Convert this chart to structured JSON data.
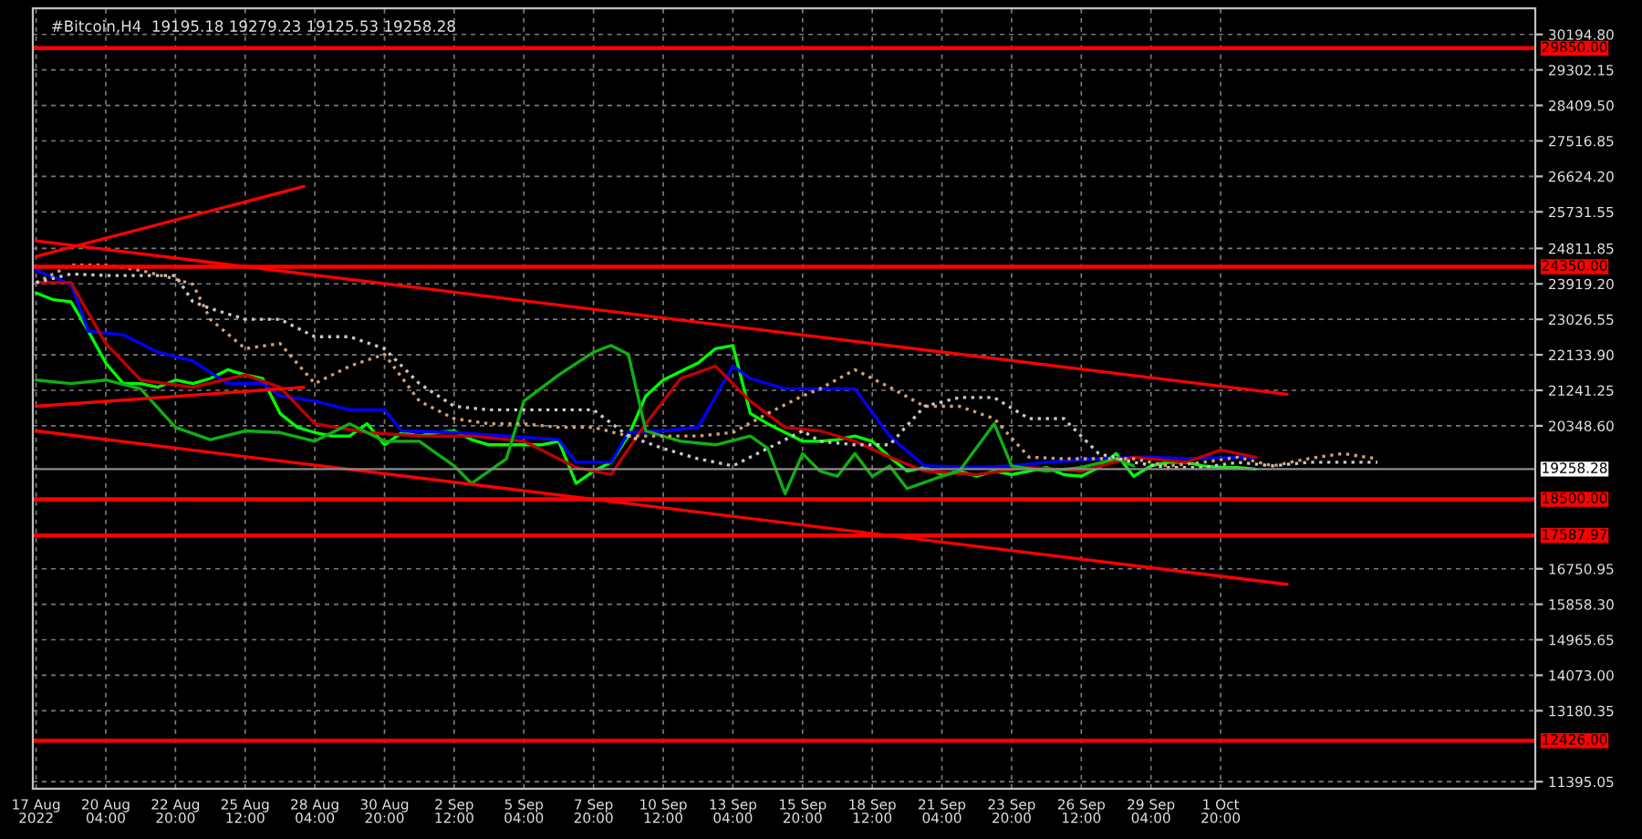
{
  "chart_data": {
    "type": "line",
    "title": "#Bitcoin,H4  19195.18 19279.23 19125.53 19258.28",
    "x": [
      "2022-08-17T12:00",
      "2022-08-18T04:00",
      "2022-08-18T20:00",
      "2022-08-19T12:00",
      "2022-08-20T04:00",
      "2022-08-20T20:00",
      "2022-08-21T12:00",
      "2022-08-22T04:00",
      "2022-08-22T20:00",
      "2022-08-23T12:00",
      "2022-08-24T04:00",
      "2022-08-24T20:00",
      "2022-08-25T12:00",
      "2022-08-26T04:00",
      "2022-08-26T20:00",
      "2022-08-27T12:00",
      "2022-08-28T04:00",
      "2022-08-28T20:00",
      "2022-08-29T12:00",
      "2022-08-30T04:00",
      "2022-08-30T20:00",
      "2022-08-31T12:00",
      "2022-09-01T04:00",
      "2022-09-01T20:00",
      "2022-09-02T12:00",
      "2022-09-03T04:00",
      "2022-09-03T20:00",
      "2022-09-04T12:00",
      "2022-09-05T04:00",
      "2022-09-05T20:00",
      "2022-09-06T12:00",
      "2022-09-07T04:00",
      "2022-09-07T20:00",
      "2022-09-08T12:00",
      "2022-09-09T04:00",
      "2022-09-09T20:00",
      "2022-09-10T12:00",
      "2022-09-11T04:00",
      "2022-09-11T20:00",
      "2022-09-12T12:00",
      "2022-09-13T04:00",
      "2022-09-13T20:00",
      "2022-09-14T12:00",
      "2022-09-15T04:00",
      "2022-09-15T20:00",
      "2022-09-16T12:00",
      "2022-09-17T04:00",
      "2022-09-17T20:00",
      "2022-09-18T12:00",
      "2022-09-19T04:00",
      "2022-09-19T20:00",
      "2022-09-20T12:00",
      "2022-09-21T04:00",
      "2022-09-21T20:00",
      "2022-09-22T12:00",
      "2022-09-23T04:00",
      "2022-09-23T20:00",
      "2022-09-24T12:00",
      "2022-09-25T04:00",
      "2022-09-25T20:00",
      "2022-09-26T12:00",
      "2022-09-27T04:00",
      "2022-09-27T20:00",
      "2022-09-28T12:00",
      "2022-09-29T04:00",
      "2022-09-29T20:00",
      "2022-09-30T12:00",
      "2022-10-01T04:00",
      "2022-10-01T20:00",
      "2022-10-02T12:00",
      "2022-10-03T04:00"
    ],
    "series": [
      {
        "color": "#00ff00",
        "values": [
          23690,
          23520,
          23470,
          22730,
          21930,
          21410,
          21410,
          21320,
          21500,
          21410,
          21540,
          21760,
          21630,
          21540,
          20660,
          20310,
          20180,
          20090,
          20090,
          20400,
          19870,
          20180,
          20090,
          20180,
          20220,
          20000,
          19870,
          19870,
          19870,
          19870,
          19960,
          18900,
          19210,
          19430,
          20090,
          21100,
          21500,
          21720,
          21930,
          22290,
          22370,
          20660,
          20400,
          20180,
          19960,
          19960,
          20000,
          20090,
          19960,
          19560,
          19210,
          19300,
          19120,
          19210,
          19080,
          19210,
          19120,
          19210,
          19300,
          19120,
          19080,
          19300,
          19650,
          19080,
          19340,
          19430,
          19430,
          19340,
          19300,
          19300,
          19260
        ]
      },
      {
        "color": "#0000ff",
        "x": [
          "2022-08-17T12:00",
          "2022-08-18T20:00",
          "2022-08-19T12:00",
          "2022-08-20T20:00",
          "2022-08-22T04:00",
          "2022-08-23T12:00",
          "2022-08-24T20:00",
          "2022-08-26T04:00",
          "2022-08-26T20:00",
          "2022-08-28T04:00",
          "2022-08-29T12:00",
          "2022-08-30T20:00",
          "2022-08-31T12:00",
          "2022-09-02T12:00",
          "2022-09-04T12:00",
          "2022-09-06T12:00",
          "2022-09-07T04:00",
          "2022-09-08T12:00",
          "2022-09-09T04:00",
          "2022-09-10T12:00",
          "2022-09-11T20:00",
          "2022-09-13T04:00",
          "2022-09-13T20:00",
          "2022-09-15T04:00",
          "2022-09-16T12:00",
          "2022-09-17T20:00",
          "2022-09-19T04:00",
          "2022-09-20T12:00",
          "2022-09-22T12:00",
          "2022-09-23T20:00",
          "2022-09-25T04:00",
          "2022-09-27T04:00",
          "2022-09-29T04:00",
          "2022-09-30T12:00",
          "2022-10-03T04:00"
        ],
        "values": [
          24260,
          23910,
          22730,
          22640,
          22200,
          21980,
          21410,
          21410,
          21100,
          20970,
          20750,
          20750,
          20220,
          20180,
          20090,
          20000,
          19430,
          19430,
          20180,
          20220,
          20310,
          21850,
          21540,
          21280,
          21280,
          21280,
          20090,
          19340,
          19300,
          19340,
          19430,
          19520,
          19560,
          19520,
          19560
        ]
      },
      {
        "color": "#c00000",
        "x": [
          "2022-08-17T12:00",
          "2022-08-18T20:00",
          "2022-08-20T04:00",
          "2022-08-21T12:00",
          "2022-08-23T12:00",
          "2022-08-25T12:00",
          "2022-08-26T20:00",
          "2022-08-28T04:00",
          "2022-08-30T04:00",
          "2022-09-01T04:00",
          "2022-09-03T04:00",
          "2022-09-05T04:00",
          "2022-09-07T04:00",
          "2022-09-08T12:00",
          "2022-09-09T20:00",
          "2022-09-11T04:00",
          "2022-09-12T12:00",
          "2022-09-13T20:00",
          "2022-09-15T04:00",
          "2022-09-16T12:00",
          "2022-09-17T20:00",
          "2022-09-19T04:00",
          "2022-09-20T12:00",
          "2022-09-22T12:00",
          "2022-09-24T12:00",
          "2022-09-26T12:00",
          "2022-09-28T12:00",
          "2022-09-30T12:00",
          "2022-10-01T20:00",
          "2022-10-03T04:00"
        ],
        "values": [
          23950,
          23950,
          22420,
          21500,
          21320,
          21630,
          21320,
          20400,
          20180,
          20090,
          20090,
          19960,
          19300,
          19120,
          20400,
          21540,
          21850,
          20970,
          20310,
          20220,
          19960,
          19560,
          19210,
          19120,
          19300,
          19210,
          19560,
          19430,
          19740,
          19560
        ]
      },
      {
        "color": "#10b010",
        "x": [
          "2022-08-17T12:00",
          "2022-08-18T20:00",
          "2022-08-20T04:00",
          "2022-08-21T12:00",
          "2022-08-22T20:00",
          "2022-08-24T04:00",
          "2022-08-25T12:00",
          "2022-08-26T20:00",
          "2022-08-28T04:00",
          "2022-08-29T12:00",
          "2022-08-30T20:00",
          "2022-09-01T04:00",
          "2022-09-02T12:00",
          "2022-09-03T04:00",
          "2022-09-04T12:00",
          "2022-09-05T04:00",
          "2022-09-06T12:00",
          "2022-09-07T20:00",
          "2022-09-08T12:00",
          "2022-09-09T04:00",
          "2022-09-09T20:00",
          "2022-09-11T04:00",
          "2022-09-12T12:00",
          "2022-09-13T20:00",
          "2022-09-14T12:00",
          "2022-09-15T04:00",
          "2022-09-15T20:00",
          "2022-09-16T12:00",
          "2022-09-17T04:00",
          "2022-09-17T20:00",
          "2022-09-18T12:00",
          "2022-09-19T04:00",
          "2022-09-19T20:00",
          "2022-09-21T04:00",
          "2022-09-21T20:00",
          "2022-09-23T04:00",
          "2022-09-23T20:00",
          "2022-09-25T04:00",
          "2022-09-26T12:00",
          "2022-09-27T20:00",
          "2022-09-28T12:00"
        ],
        "values": [
          21500,
          21410,
          21500,
          21280,
          20310,
          20000,
          20220,
          20180,
          19960,
          20400,
          19960,
          19960,
          19340,
          18900,
          19520,
          20970,
          21630,
          22200,
          22370,
          22150,
          20220,
          19960,
          19870,
          20090,
          19780,
          18640,
          19650,
          19210,
          19080,
          19650,
          19080,
          19340,
          18770,
          19080,
          19210,
          20400,
          19340,
          19210,
          19300,
          19520,
          19340
        ]
      },
      {
        "color": "#d2a070",
        "line_style": "dotted",
        "x": [
          "2022-08-17T12:00",
          "2022-08-18T20:00",
          "2022-08-20T04:00",
          "2022-08-21T12:00",
          "2022-08-22T20:00",
          "2022-08-23T12:00",
          "2022-08-24T04:00",
          "2022-08-25T12:00",
          "2022-08-26T20:00",
          "2022-08-28T04:00",
          "2022-08-29T12:00",
          "2022-08-30T20:00",
          "2022-09-01T04:00",
          "2022-09-02T12:00",
          "2022-09-03T20:00",
          "2022-09-05T04:00",
          "2022-09-06T12:00",
          "2022-09-07T20:00",
          "2022-09-09T04:00",
          "2022-09-10T12:00",
          "2022-09-11T20:00",
          "2022-09-13T04:00",
          "2022-09-14T12:00",
          "2022-09-15T20:00",
          "2022-09-16T12:00",
          "2022-09-17T20:00",
          "2022-09-19T04:00",
          "2022-09-20T12:00",
          "2022-09-21T20:00",
          "2022-09-23T04:00",
          "2022-09-24T12:00",
          "2022-09-25T20:00",
          "2022-09-27T04:00",
          "2022-09-28T12:00",
          "2022-09-29T20:00",
          "2022-10-01T04:00",
          "2022-10-02T12:00",
          "2022-10-03T20:00",
          "2022-10-05T04:00",
          "2022-10-06T12:00",
          "2022-10-07T20:00"
        ],
        "values": [
          23950,
          24390,
          24390,
          24260,
          24040,
          23910,
          23030,
          22290,
          22420,
          21410,
          21850,
          22150,
          20970,
          20530,
          20400,
          20400,
          20310,
          20310,
          20090,
          20090,
          20090,
          20180,
          20660,
          21100,
          21280,
          21760,
          21320,
          20840,
          20840,
          20530,
          19560,
          19520,
          19520,
          19520,
          19340,
          19430,
          19560,
          19340,
          19520,
          19650,
          19520
        ]
      },
      {
        "color": "#c8c8c8",
        "line_style": "dotted",
        "x": [
          "2022-08-17T12:00",
          "2022-08-18T20:00",
          "2022-08-20T04:00",
          "2022-08-21T12:00",
          "2022-08-22T20:00",
          "2022-08-23T12:00",
          "2022-08-24T04:00",
          "2022-08-25T12:00",
          "2022-08-26T20:00",
          "2022-08-28T04:00",
          "2022-08-29T12:00",
          "2022-08-30T20:00",
          "2022-09-01T04:00",
          "2022-09-02T12:00",
          "2022-09-03T20:00",
          "2022-09-05T04:00",
          "2022-09-06T12:00",
          "2022-09-07T20:00",
          "2022-09-09T04:00",
          "2022-09-10T12:00",
          "2022-09-11T20:00",
          "2022-09-13T04:00",
          "2022-09-14T12:00",
          "2022-09-15T20:00",
          "2022-09-16T12:00",
          "2022-09-17T20:00",
          "2022-09-19T04:00",
          "2022-09-20T12:00",
          "2022-09-21T20:00",
          "2022-09-23T04:00",
          "2022-09-24T12:00",
          "2022-09-25T20:00",
          "2022-09-27T04:00",
          "2022-09-28T12:00",
          "2022-09-29T20:00",
          "2022-10-01T04:00",
          "2022-10-02T12:00",
          "2022-10-03T20:00",
          "2022-10-05T04:00",
          "2022-10-06T12:00",
          "2022-10-07T20:00"
        ],
        "values": [
          23950,
          24170,
          24130,
          24130,
          24130,
          23470,
          23300,
          23030,
          23030,
          22590,
          22590,
          22290,
          21410,
          20840,
          20750,
          20750,
          20750,
          20750,
          20090,
          19780,
          19520,
          19340,
          19780,
          20220,
          19960,
          19870,
          19870,
          20840,
          21060,
          21060,
          20530,
          20530,
          19650,
          19430,
          19300,
          19300,
          19430,
          19340,
          19430,
          19430,
          19430
        ]
      },
      {
        "color": "#ff0000",
        "x": [
          "2022-08-17T12:00",
          "2022-08-27T18:00"
        ],
        "values": [
          24610,
          26370
        ]
      },
      {
        "color": "#ff0000",
        "x": [
          "2022-08-17T12:00",
          "2022-10-04T09:00"
        ],
        "values": [
          25000,
          21140
        ]
      },
      {
        "color": "#ff0000",
        "x": [
          "2022-08-17T12:00",
          "2022-08-27T18:00"
        ],
        "values": [
          20840,
          21320
        ]
      },
      {
        "color": "#ff0000",
        "x": [
          "2022-08-17T12:00",
          "2022-10-04T09:00"
        ],
        "values": [
          20220,
          16360
        ]
      }
    ],
    "ref_lines": [
      {
        "axis": "y",
        "value": 29850,
        "label": "29850.00",
        "color": "#ff0000"
      },
      {
        "axis": "y",
        "value": 24350,
        "label": "24350.00",
        "color": "#ff0000"
      },
      {
        "axis": "y",
        "value": 19258.28,
        "label": "19258.28",
        "color": "#8c8c8c"
      },
      {
        "axis": "y",
        "value": 18500,
        "label": "18500.00",
        "color": "#ff0000"
      },
      {
        "axis": "y",
        "value": 17587.97,
        "label": "17587.97",
        "color": "#ff0000"
      },
      {
        "axis": "y",
        "value": 12426,
        "label": "12426.00",
        "color": "#ff0000"
      }
    ],
    "xlim": [
      "2022-08-17T09:00",
      "2022-10-13T21:00"
    ],
    "xticks": [
      {
        "value": "2022-08-17T12:00",
        "label": "17 Aug 2022"
      },
      {
        "value": "2022-08-20T04:00",
        "label": "20 Aug 04:00"
      },
      {
        "value": "2022-08-22T20:00",
        "label": "22 Aug 20:00"
      },
      {
        "value": "2022-08-25T12:00",
        "label": "25 Aug 12:00"
      },
      {
        "value": "2022-08-28T04:00",
        "label": "28 Aug 04:00"
      },
      {
        "value": "2022-08-30T20:00",
        "label": "30 Aug 20:00"
      },
      {
        "value": "2022-09-02T12:00",
        "label": "2 Sep 12:00"
      },
      {
        "value": "2022-09-05T04:00",
        "label": "5 Sep 04:00"
      },
      {
        "value": "2022-09-07T20:00",
        "label": "7 Sep 20:00"
      },
      {
        "value": "2022-09-10T12:00",
        "label": "10 Sep 12:00"
      },
      {
        "value": "2022-09-13T04:00",
        "label": "13 Sep 04:00"
      },
      {
        "value": "2022-09-15T20:00",
        "label": "15 Sep 20:00"
      },
      {
        "value": "2022-09-18T12:00",
        "label": "18 Sep 12:00"
      },
      {
        "value": "2022-09-21T04:00",
        "label": "21 Sep 04:00"
      },
      {
        "value": "2022-09-23T20:00",
        "label": "23 Sep 20:00"
      },
      {
        "value": "2022-09-26T12:00",
        "label": "26 Sep 12:00"
      },
      {
        "value": "2022-09-29T04:00",
        "label": "29 Sep 04:00"
      },
      {
        "value": "2022-10-01T20:00",
        "label": "1 Oct 20:00"
      }
    ],
    "ylim": [
      11220,
      30850
    ],
    "yticks": [
      {
        "value": 30194.8,
        "label": "30194.80"
      },
      {
        "value": 29302.15,
        "label": "29302.15"
      },
      {
        "value": 28409.5,
        "label": "28409.50"
      },
      {
        "value": 27516.85,
        "label": "27516.85"
      },
      {
        "value": 26624.2,
        "label": "26624.20"
      },
      {
        "value": 25731.55,
        "label": "25731.55"
      },
      {
        "value": 24811.85,
        "label": "24811.85"
      },
      {
        "value": 23919.2,
        "label": "23919.20"
      },
      {
        "value": 23026.55,
        "label": "23026.55"
      },
      {
        "value": 22133.9,
        "label": "22133.90"
      },
      {
        "value": 21241.25,
        "label": "21241.25"
      },
      {
        "value": 20348.6,
        "label": "20348.60"
      },
      {
        "value": 16750.95,
        "label": "16750.95"
      },
      {
        "value": 15858.3,
        "label": "15858.30"
      },
      {
        "value": 14965.65,
        "label": "14965.65"
      },
      {
        "value": 14073,
        "label": "14073.00"
      },
      {
        "value": 13180.35,
        "label": "13180.35"
      },
      {
        "value": 11395.05,
        "label": "11395.05"
      }
    ],
    "grid": true
  }
}
